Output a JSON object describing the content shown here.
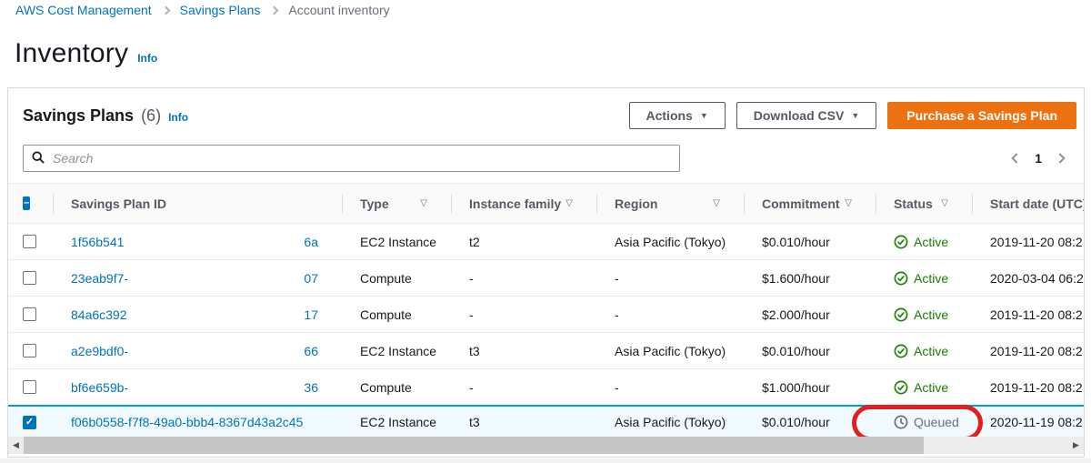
{
  "breadcrumb": {
    "items": [
      {
        "label": "AWS Cost Management",
        "type": "link"
      },
      {
        "label": "Savings Plans",
        "type": "link"
      },
      {
        "label": "Account inventory",
        "type": "current"
      }
    ]
  },
  "page": {
    "title": "Inventory",
    "info_label": "Info"
  },
  "panel": {
    "title": "Savings Plans",
    "count": "(6)",
    "info_label": "Info",
    "buttons": {
      "actions": "Actions",
      "download": "Download CSV",
      "purchase": "Purchase a Savings Plan"
    },
    "search": {
      "placeholder": "Search"
    },
    "pagination": {
      "current_page": "1"
    }
  },
  "table": {
    "columns": [
      {
        "label": "",
        "name": "select",
        "sortable": false
      },
      {
        "label": "Savings Plan ID",
        "name": "savings-plan-id",
        "sortable": false
      },
      {
        "label": "Type",
        "name": "type",
        "sortable": true
      },
      {
        "label": "Instance family",
        "name": "instance-family",
        "sortable": true
      },
      {
        "label": "Region",
        "name": "region",
        "sortable": true
      },
      {
        "label": "Commitment",
        "name": "commitment",
        "sortable": true
      },
      {
        "label": "Status",
        "name": "status",
        "sortable": true
      },
      {
        "label": "Start date (UTC)",
        "name": "start-date-utc",
        "sortable": false
      }
    ],
    "header_checkbox_state": "indeterminate",
    "rows": [
      {
        "id_start": "1f56b541",
        "id_end": "6a",
        "type": "EC2 Instance",
        "instance_family": "t2",
        "region": "Asia Pacific (Tokyo)",
        "commitment": "$0.010/hour",
        "status": "Active",
        "start_date": "2019-11-20 08:2",
        "checked": false,
        "selected": false
      },
      {
        "id_start": "23eab9f7-",
        "id_end": "07",
        "type": "Compute",
        "instance_family": "-",
        "region": "-",
        "commitment": "$1.600/hour",
        "status": "Active",
        "start_date": "2020-03-04 06:2",
        "checked": false,
        "selected": false
      },
      {
        "id_start": "84a6c392",
        "id_end": "17",
        "type": "Compute",
        "instance_family": "-",
        "region": "-",
        "commitment": "$2.000/hour",
        "status": "Active",
        "start_date": "2019-11-20 08:2",
        "checked": false,
        "selected": false
      },
      {
        "id_start": "a2e9bdf0-",
        "id_end": "66",
        "type": "EC2 Instance",
        "instance_family": "t3",
        "region": "Asia Pacific (Tokyo)",
        "commitment": "$0.010/hour",
        "status": "Active",
        "start_date": "2019-11-20 08:2",
        "checked": false,
        "selected": false
      },
      {
        "id_start": "bf6e659b-",
        "id_end": "36",
        "type": "Compute",
        "instance_family": "-",
        "region": "-",
        "commitment": "$1.000/hour",
        "status": "Active",
        "start_date": "2019-11-20 08:2",
        "checked": false,
        "selected": false
      },
      {
        "id_full": "f06b0558-f7f8-49a0-bbb4-8367d43a2c45",
        "type": "EC2 Instance",
        "instance_family": "t3",
        "region": "Asia Pacific (Tokyo)",
        "commitment": "$0.010/hour",
        "status": "Queued",
        "start_date": "2020-11-19 08:2",
        "checked": true,
        "selected": true,
        "annotated": true
      }
    ]
  },
  "annotation": {
    "shape": "red-ellipse",
    "around": "Queued status badge of selected row",
    "color": "#e0201f"
  },
  "colors": {
    "link": "#0073bb",
    "primary_button": "#ec7211",
    "status_active": "#1d8102",
    "status_queued": "#687078",
    "selected_row_border": "#00a1c9",
    "selected_row_bg": "#f1faff"
  }
}
